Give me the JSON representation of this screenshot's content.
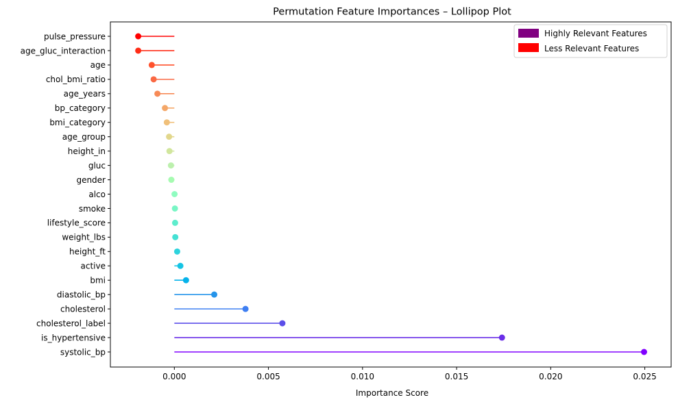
{
  "chart_data": {
    "type": "lollipop",
    "title": "Permutation Feature Importances – Lollipop Plot",
    "xlabel": "Importance Score",
    "ylabel": "",
    "xlim": [
      -0.0034,
      0.0264
    ],
    "xticks": [
      0.0,
      0.005,
      0.01,
      0.015,
      0.02,
      0.025
    ],
    "xtick_labels": [
      "0.000",
      "0.005",
      "0.010",
      "0.015",
      "0.020",
      "0.025"
    ],
    "grid": false,
    "legend_position": "top-right",
    "legend": [
      {
        "label": "Highly Relevant Features",
        "color": "#800080"
      },
      {
        "label": "Less Relevant Features",
        "color": "#ff0000"
      }
    ],
    "features": [
      {
        "name": "pulse_pressure",
        "value": -0.00192,
        "color": "#ff0000"
      },
      {
        "name": "age_gluc_interaction",
        "value": -0.00192,
        "color": "#ff2c16"
      },
      {
        "name": "age",
        "value": -0.0012,
        "color": "#ff512c"
      },
      {
        "name": "chol_bmi_ratio",
        "value": -0.0011,
        "color": "#fa6944"
      },
      {
        "name": "age_years",
        "value": -0.0009,
        "color": "#f78a56"
      },
      {
        "name": "bp_category",
        "value": -0.0005,
        "color": "#f4a768"
      },
      {
        "name": "bmi_category",
        "value": -0.0004,
        "color": "#f0c07a"
      },
      {
        "name": "age_group",
        "value": -0.00028,
        "color": "#e2d78c"
      },
      {
        "name": "height_in",
        "value": -0.00026,
        "color": "#d1e69d"
      },
      {
        "name": "gluc",
        "value": -0.00018,
        "color": "#bcf0ad"
      },
      {
        "name": "gender",
        "value": -0.00016,
        "color": "#a6fbb1"
      },
      {
        "name": "alco",
        "value": 1e-05,
        "color": "#8ffcc0"
      },
      {
        "name": "smoke",
        "value": 3e-05,
        "color": "#78f6c5"
      },
      {
        "name": "lifestyle_score",
        "value": 4e-05,
        "color": "#5eedcd"
      },
      {
        "name": "weight_lbs",
        "value": 5e-05,
        "color": "#45e1d4"
      },
      {
        "name": "height_ft",
        "value": 0.00015,
        "color": "#2dd3dd"
      },
      {
        "name": "active",
        "value": 0.00032,
        "color": "#15c4e4"
      },
      {
        "name": "bmi",
        "value": 0.00062,
        "color": "#05b2ea"
      },
      {
        "name": "diastolic_bp",
        "value": 0.00212,
        "color": "#2594ea"
      },
      {
        "name": "cholesterol",
        "value": 0.00378,
        "color": "#3f7ff2"
      },
      {
        "name": "cholesterol_label",
        "value": 0.00574,
        "color": "#5b4ee9"
      },
      {
        "name": "is_hypertensive",
        "value": 0.01741,
        "color": "#6a2ee8"
      },
      {
        "name": "systolic_bp",
        "value": 0.02496,
        "color": "#8000ff"
      }
    ]
  }
}
